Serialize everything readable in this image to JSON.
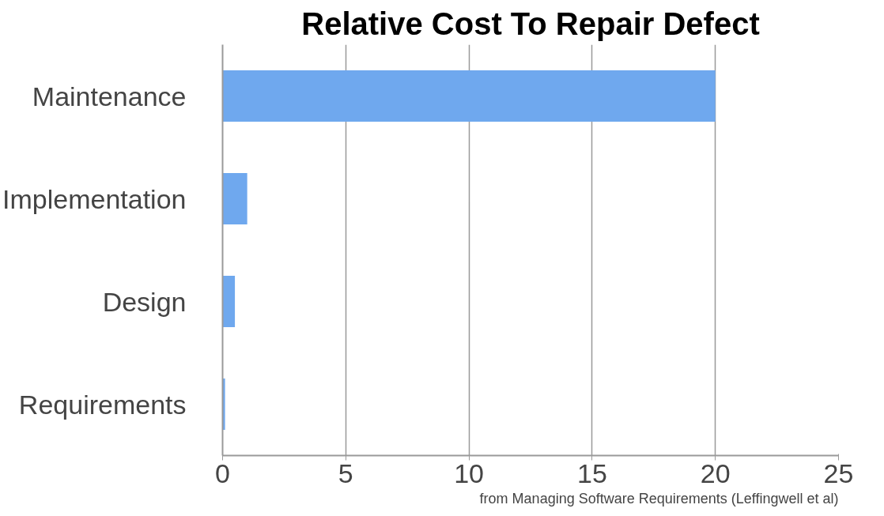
{
  "chart_data": {
    "type": "bar",
    "orientation": "horizontal",
    "title": "Relative Cost To Repair Defect",
    "categories": [
      "Maintenance",
      "Implementation",
      "Design",
      "Requirements"
    ],
    "values": [
      20,
      1,
      0.5,
      0.1
    ],
    "color": "#6fa8ee",
    "xlim": [
      0,
      25
    ],
    "xticks": [
      0,
      5,
      10,
      15,
      20,
      25
    ],
    "grid": "x",
    "annotations": [
      "from Managing Software Requirements (Leffingwell et al)"
    ]
  }
}
